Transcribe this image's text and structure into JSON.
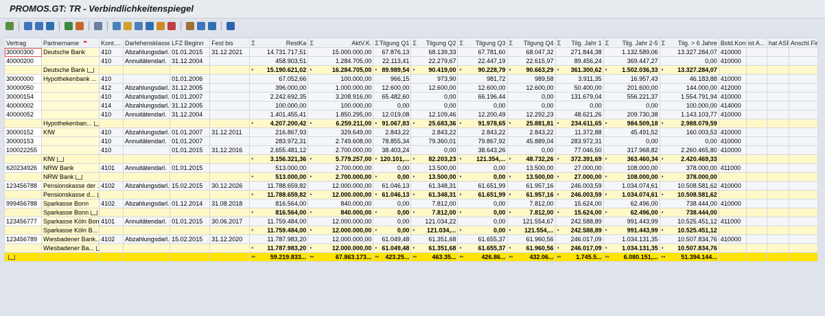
{
  "title": "PROMOS.GT: TR - Verbindlichkeitenspiegel",
  "sum_symbol": "Σ",
  "columns": [
    {
      "label": "Vertrag"
    },
    {
      "label": "Partnername",
      "sorted": true
    },
    {
      "label": "Kont...."
    },
    {
      "label": "Darlehensklasse"
    },
    {
      "label": "LFZ Beginn"
    },
    {
      "label": "Fest bis"
    },
    {
      "label": "RestKa",
      "sum": true
    },
    {
      "label": "AktV.K.",
      "sum": true
    },
    {
      "label": "Tilgung Q1",
      "sum": true
    },
    {
      "label": "Tilgung Q2",
      "sum": true
    },
    {
      "label": "Tilgung Q3",
      "sum": true
    },
    {
      "label": "Tilgung Q4",
      "sum": true
    },
    {
      "label": "Tilg. Jahr 1",
      "sum": true
    },
    {
      "label": "Tilg. Jahr 2-5",
      "sum": true
    },
    {
      "label": "Tilg. > 6 Jahre",
      "sum": true
    },
    {
      "label": "Bstd.Kont"
    },
    {
      "label": "ist A..."
    },
    {
      "label": "hat ASF"
    },
    {
      "label": "Anschl.Fin"
    }
  ],
  "rows": [
    {
      "type": "item",
      "cells": [
        "30000300",
        "Deutsche Bank",
        "410",
        "Abzahlungsdarl.",
        "01.01.2015",
        "31.12.2021",
        "14.731.717,51",
        "15.000.000,00",
        "67.876,13",
        "68.139,33",
        "67.781,60",
        "68.047,32",
        "271.844,38",
        "1.132.589,06",
        "13.327.284,07",
        "410000"
      ]
    },
    {
      "type": "item",
      "cells": [
        "40000200",
        null,
        "410",
        "Annuitätendarl.",
        "31.12.2004",
        null,
        "458.903,51",
        "1.284.705,00",
        "22.113,41",
        "22.279,67",
        "22.447,19",
        "22.615,97",
        "89.456,24",
        "369.447,27",
        "0,00",
        "410000"
      ]
    },
    {
      "type": "subtotal",
      "cells": [
        null,
        "Deutsche Bank",
        null,
        null,
        null,
        null,
        "15.190.621,02",
        "16.284.705,00",
        "89.989,54",
        "90.419,00",
        "90.228,79",
        "90.663,29",
        "361.300,62",
        "1.502.036,33",
        "13.327.284,07"
      ]
    },
    {
      "type": "item",
      "cells": [
        "30000000",
        "Hypothekenbank ...",
        "410",
        null,
        "01.01.2006",
        null,
        "67.052,66",
        "100.000,00",
        "966,15",
        "973,90",
        "981,72",
        "989,58",
        "3.911,35",
        "16.957,43",
        "46.183,88",
        "410000"
      ]
    },
    {
      "type": "item",
      "cells": [
        "30000050",
        null,
        "412",
        "Abzahlungsdarl.",
        "31.12.2005",
        null,
        "396.000,00",
        "1.000.000,00",
        "12.600,00",
        "12.600,00",
        "12.600,00",
        "12.600,00",
        "50.400,00",
        "201.600,00",
        "144.000,00",
        "412000"
      ]
    },
    {
      "type": "item",
      "cells": [
        "30000154",
        null,
        "410",
        "Abzahlungsdarl.",
        "01.01.2007",
        null,
        "2.242.692,35",
        "3.208.916,00",
        "65.482,60",
        "0,00",
        "66.196,44",
        "0,00",
        "131.679,04",
        "556.221,37",
        "1.554.791,94",
        "410000"
      ]
    },
    {
      "type": "item",
      "cells": [
        "40000002",
        null,
        "414",
        "Abzahlungsdarl.",
        "31.12.2005",
        null,
        "100.000,00",
        "100.000,00",
        "0,00",
        "0,00",
        "0,00",
        "0,00",
        "0,00",
        "0,00",
        "100.000,00",
        "414000"
      ]
    },
    {
      "type": "item",
      "cells": [
        "40000052",
        null,
        "410",
        "Annuitätendarl.",
        "31.12.2004",
        null,
        "1.401.455,41",
        "1.850.295,00",
        "12.019,08",
        "12.109,46",
        "12.200,49",
        "12.292,23",
        "48.621,26",
        "209.730,38",
        "1.143.103,77",
        "410000"
      ]
    },
    {
      "type": "subtotal",
      "cells": [
        null,
        "Hypothekenban...",
        null,
        null,
        null,
        null,
        "4.207.200,42",
        "6.259.211,00",
        "91.067,83",
        "25.683,36",
        "91.978,65",
        "25.881,81",
        "234.611,65",
        "984.509,18",
        "2.988.079,59"
      ]
    },
    {
      "type": "item",
      "cells": [
        "30000152",
        "KfW",
        "410",
        "Abzahlungsdarl.",
        "01.01.2007",
        "31.12.2011",
        "216.867,93",
        "329.649,00",
        "2.843,22",
        "2.843,22",
        "2.843,22",
        "2.843,22",
        "11.372,88",
        "45.491,52",
        "160.003,53",
        "410000"
      ]
    },
    {
      "type": "item",
      "cells": [
        "30000153",
        null,
        "410",
        "Annuitätendarl.",
        "01.01.2007",
        null,
        "283.972,31",
        "2.749.608,00",
        "78.855,34",
        "79.360,01",
        "79.867,92",
        "45.889,04",
        "283.972,31",
        "0,00",
        "0,00",
        "410000"
      ]
    },
    {
      "type": "item",
      "cells": [
        "100022255",
        null,
        "410",
        null,
        "01.01.2015",
        "31.12.2016",
        "2.655.481,12",
        "2.700.000,00",
        "38.403,24",
        "0,00",
        "38.643,26",
        "0,00",
        "77.046,50",
        "317.968,82",
        "2.260.465,80",
        "410000"
      ]
    },
    {
      "type": "subtotal",
      "cells": [
        null,
        "KfW",
        null,
        null,
        null,
        null,
        "3.156.321,36",
        "5.779.257,00",
        "120.101,...",
        "82.203,23",
        "121.354,...",
        "48.732,26",
        "372.391,69",
        "363.460,34",
        "2.420.469,33"
      ]
    },
    {
      "type": "item",
      "cells": [
        "620234926",
        "NRW Bank",
        "4101",
        "Annuitätendarl.",
        "01.01.2015",
        null,
        "513.000,00",
        "2.700.000,00",
        "0,00",
        "13.500,00",
        "0,00",
        "13.500,00",
        "27.000,00",
        "108.000,00",
        "378.000,00",
        "411000"
      ]
    },
    {
      "type": "subtotal",
      "cells": [
        null,
        "NRW Bank",
        null,
        null,
        null,
        null,
        "513.000,00",
        "2.700.000,00",
        "0,00",
        "13.500,00",
        "0,00",
        "13.500,00",
        "27.000,00",
        "108.000,00",
        "378.000,00"
      ]
    },
    {
      "type": "item",
      "cells": [
        "123456788",
        "Pensionskasse der ...",
        "4102",
        "Abzahlungsdarl.",
        "15.02.2015",
        "30.12.2026",
        "11.788.659,82",
        "12.000.000,00",
        "61.046,13",
        "61.348,31",
        "61.651,99",
        "61.957,16",
        "246.003,59",
        "1.034.074,61",
        "10.508.581,62",
        "410000"
      ]
    },
    {
      "type": "subtotal",
      "cells": [
        null,
        "Pensionskasse d...",
        null,
        null,
        null,
        null,
        "11.788.659,82",
        "12.000.000,00",
        "61.046,13",
        "61.348,31",
        "61.651,99",
        "61.957,16",
        "246.003,59",
        "1.034.074,61",
        "10.508.581,62"
      ]
    },
    {
      "type": "item",
      "cells": [
        "999456788",
        "Sparkasse Bonn",
        "4102",
        "Abzahlungsdarl.",
        "01.12.2014",
        "31.08.2018",
        "816.564,00",
        "840.000,00",
        "0,00",
        "7.812,00",
        "0,00",
        "7.812,00",
        "15.624,00",
        "62.496,00",
        "738.444,00",
        "410000"
      ]
    },
    {
      "type": "subtotal",
      "cells": [
        null,
        "Sparkasse Bonn",
        null,
        null,
        null,
        null,
        "816.564,00",
        "840.000,00",
        "0,00",
        "7.812,00",
        "0,00",
        "7.812,00",
        "15.624,00",
        "62.496,00",
        "738.444,00"
      ]
    },
    {
      "type": "item",
      "cells": [
        "123456777",
        "Sparkasse Köln Bonn",
        "4101",
        "Annuitätendarl.",
        "01.01.2015",
        "30.06.2017",
        "11.759.484,00",
        "12.000.000,00",
        "0,00",
        "121.034,22",
        "0,00",
        "121.554,67",
        "242.588,89",
        "991.443,99",
        "10.525.451,12",
        "411000"
      ]
    },
    {
      "type": "subtotal",
      "cells": [
        null,
        "Sparkasse Köln B...",
        null,
        null,
        null,
        null,
        "11.759.484,00",
        "12.000.000,00",
        "0,00",
        "121.034,...",
        "0,00",
        "121.554,...",
        "242.588,89",
        "991.443,99",
        "10.525.451,12"
      ]
    },
    {
      "type": "item",
      "cells": [
        "123456789",
        "Wiesbadener Bank...",
        "4102",
        "Abzahlungsdarl.",
        "15.02.2015",
        "31.12.2020",
        "11.787.983,20",
        "12.000.000,00",
        "61.049,48",
        "61.351,68",
        "61.655,37",
        "61.960,56",
        "246.017,09",
        "1.034.131,35",
        "10.507.834,76",
        "410000"
      ]
    },
    {
      "type": "subtotal",
      "cells": [
        null,
        "Wiesbadener Ba...",
        null,
        null,
        null,
        null,
        "11.787.983,20",
        "12.000.000,00",
        "61.049,48",
        "61.351,68",
        "61.655,37",
        "61.960,56",
        "246.017,09",
        "1.034.131,35",
        "10.507.834,76"
      ]
    },
    {
      "type": "total",
      "cells": [
        null,
        null,
        null,
        null,
        null,
        null,
        "59.219.833...",
        "67.863.173...",
        "423.25...",
        "463.35...",
        "426.86...",
        "432.06...",
        "1.745.5...",
        "6.080.151,...",
        "51.394.144..."
      ]
    }
  ]
}
